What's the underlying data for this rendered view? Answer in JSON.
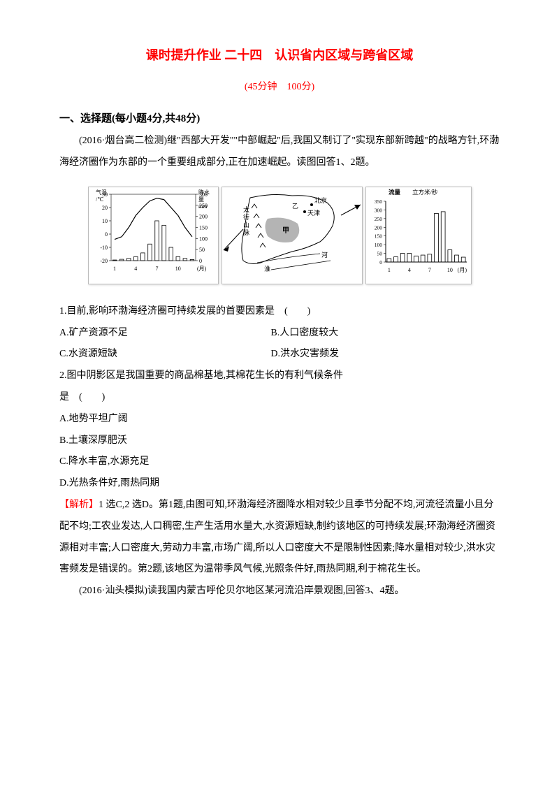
{
  "title_text": "课时提升作业 二十四　认识省内区域与跨省区域",
  "title_color": "#ff0000",
  "subtitle_text": "(45分钟　100分)",
  "subtitle_color": "#ff0000",
  "section1_header": "一、选择题(每小题4分,共48分)",
  "intro_para": "(2016·烟台高二检测)继\"西部大开发\"\"中部崛起\"后,我国又制订了\"实现东部新跨越\"的战略方针,环渤海经济圈作为东部的一个重要组成部分,正在加速崛起。读图回答1、2题。",
  "q1_stem": "1.目前,影响环渤海经济圈可持续发展的首要因素是　(　　)",
  "q1_a": "A.矿产资源不足",
  "q1_b": "B.人口密度较大",
  "q1_c": "C.水资源短缺",
  "q1_d": "D.洪水灾害频发",
  "q2_stem": "2.图中阴影区是我国重要的商品棉基地,其棉花生长的有利气候条件",
  "q2_stem2": "是　(　　)",
  "q2_a": "A.地势平坦广阔",
  "q2_b": "B.土壤深厚肥沃",
  "q2_c": "C.降水丰富,水源充足",
  "q2_d": "D.光热条件好,雨热同期",
  "analysis_label": "【解析】",
  "analysis_text": "1 选C,2 选D。第1题,由图可知,环渤海经济圈降水相对较少且季节分配不均,河流径流量小且分配不均;工农业发达,人口稠密,生产生活用水量大,水资源短缺,制约该地区的可持续发展;环渤海经济圈资源相对丰富;人口密度大,劳动力丰富,市场广阔,所以人口密度大不是限制性因素;降水量相对较少,洪水灾害频发是错误的。第2题,该地区为温带季风气候,光照条件好,雨热同期,利于棉花生长。",
  "q34_intro": "(2016·汕头模拟)读我国内蒙古呼伦贝尔地区某河流沿岸景观图,回答3、4题。",
  "climate_chart": {
    "type": "combo",
    "temp_label": "气温/℃",
    "precip_label": "降水量/mm",
    "x_label": "(月)",
    "x_ticks": [
      "1",
      "4",
      "7",
      "10"
    ],
    "temp_yticks": [
      -20,
      -10,
      0,
      10,
      20,
      30
    ],
    "precip_yticks": [
      0,
      50,
      100,
      150,
      200,
      250,
      300
    ],
    "temp_values": [
      -4,
      -2,
      5,
      14,
      20,
      25,
      27,
      26,
      20,
      14,
      5,
      -2
    ],
    "precip_values": [
      3,
      6,
      10,
      18,
      35,
      75,
      180,
      160,
      60,
      18,
      10,
      5
    ],
    "line_color": "#000000",
    "bar_color": "#000000",
    "bg_color": "#ffffff"
  },
  "map": {
    "labels": [
      "北京",
      "天津",
      "甲",
      "乙",
      "太行山脉",
      "淮",
      "河"
    ],
    "outline_color": "#000000",
    "shade_color": "#777777"
  },
  "flow_chart": {
    "type": "bar",
    "title_l1": "流量",
    "title_l2": "立方米/秒",
    "x_label": "(月)",
    "x_ticks": [
      "1",
      "4",
      "7",
      "10"
    ],
    "y_ticks": [
      0,
      50,
      100,
      150,
      200,
      250,
      300,
      350
    ],
    "values": [
      20,
      30,
      50,
      50,
      35,
      40,
      45,
      280,
      290,
      70,
      40,
      28
    ],
    "bar_color": "#000000",
    "bg_color": "#ffffff"
  }
}
